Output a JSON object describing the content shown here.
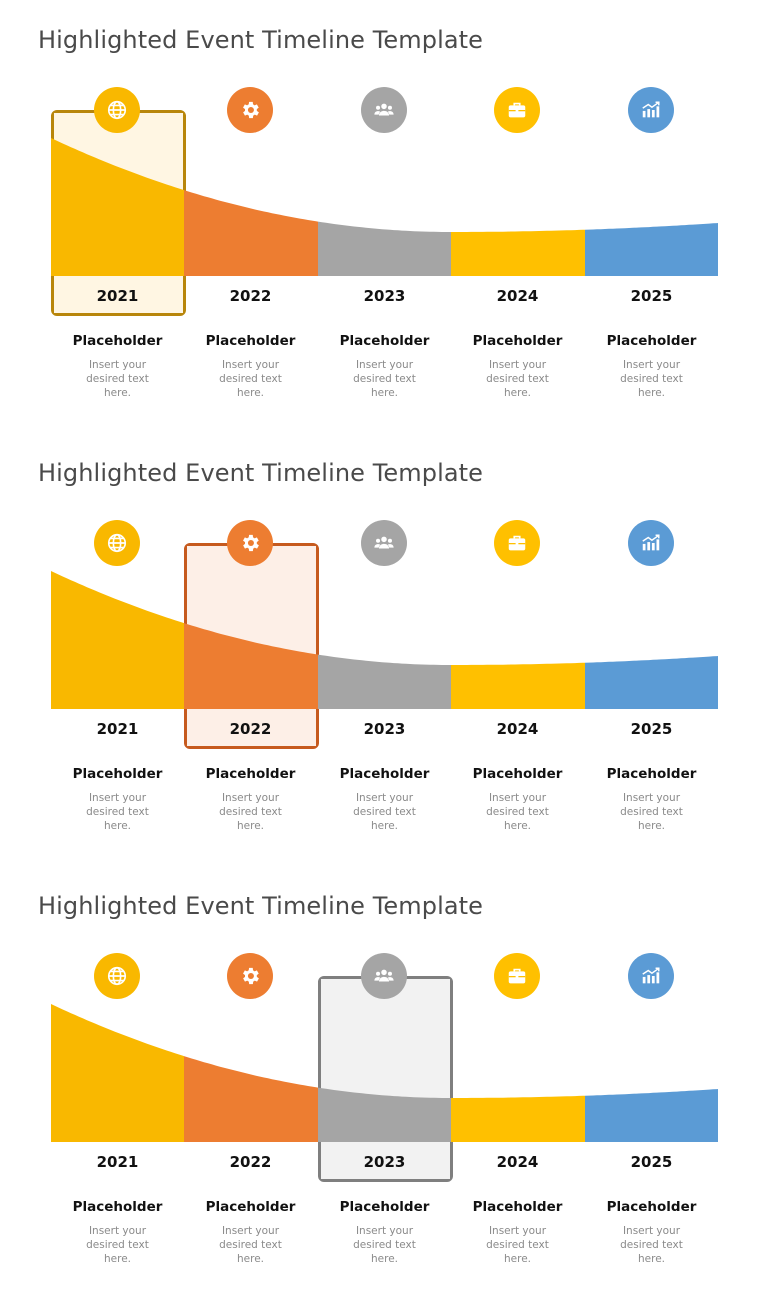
{
  "slides": [
    {
      "title": "Highlighted Event Timeline Template",
      "highlight": 0
    },
    {
      "title": "Highlighted Event Timeline Template",
      "highlight": 1
    },
    {
      "title": "Highlighted Event Timeline Template",
      "highlight": 2
    }
  ],
  "events": [
    {
      "year": "2021",
      "title": "Placeholder",
      "desc": "Insert your desired text here.",
      "icon": "globe-icon",
      "color": "#F9B800"
    },
    {
      "year": "2022",
      "title": "Placeholder",
      "desc": "Insert your desired text here.",
      "icon": "gear-icon",
      "color": "#ED7D31"
    },
    {
      "year": "2023",
      "title": "Placeholder",
      "desc": "Insert your desired text here.",
      "icon": "team-icon",
      "color": "#A5A5A5"
    },
    {
      "year": "2024",
      "title": "Placeholder",
      "desc": "Insert your desired text here.",
      "icon": "briefcase-icon",
      "color": "#FFC000"
    },
    {
      "year": "2025",
      "title": "Placeholder",
      "desc": "Insert your desired text here.",
      "icon": "chart-icon",
      "color": "#5B9BD5"
    }
  ],
  "highlight_styles": [
    {
      "border": "#B8860B",
      "fill": "#FFF6E3"
    },
    {
      "border": "#C65A1E",
      "fill": "#FDEFE7"
    },
    {
      "border": "#7F7F7F",
      "fill": "#F2F2F2"
    }
  ]
}
